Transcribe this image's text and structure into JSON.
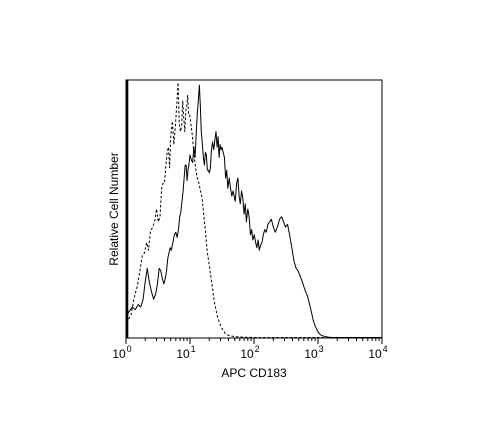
{
  "chart_data": {
    "type": "line",
    "title": "",
    "xlabel": "APC CD183",
    "ylabel": "Relative Cell Number",
    "xscale": "log",
    "xlim": [
      1,
      10000
    ],
    "ylim": [
      0,
      1
    ],
    "grid": false,
    "legend": "none",
    "x_ticks": [
      {
        "value": 1,
        "base": "10",
        "exp": "0"
      },
      {
        "value": 10,
        "base": "10",
        "exp": "1"
      },
      {
        "value": 100,
        "base": "10",
        "exp": "2"
      },
      {
        "value": 1000,
        "base": "10",
        "exp": "3"
      },
      {
        "value": 10000,
        "base": "10",
        "exp": "4"
      }
    ],
    "series": [
      {
        "style": "dashed",
        "color": "#000000",
        "x": [
          1.0,
          1.08,
          1.2,
          1.35,
          1.5,
          1.65,
          1.8,
          1.95,
          2.1,
          2.25,
          2.4,
          2.6,
          2.8,
          3.0,
          3.2,
          3.4,
          3.6,
          3.8,
          4.0,
          4.2,
          4.4,
          4.6,
          4.8,
          5.0,
          5.3,
          5.6,
          5.9,
          6.2,
          6.5,
          6.8,
          7.1,
          7.4,
          7.7,
          8.0,
          8.3,
          8.6,
          8.9,
          9.2,
          9.5,
          9.8,
          10.2,
          10.7,
          11.2,
          11.8,
          12.4,
          13.0,
          13.8,
          14.6,
          15.5,
          16.5,
          17.5,
          18.5,
          20.0,
          22.0,
          24.0,
          27.0,
          31.0,
          35.0,
          40.0,
          50.0,
          70.0,
          100,
          200,
          500,
          1000,
          5000,
          10000
        ],
        "y": [
          0.04,
          0.07,
          0.09,
          0.16,
          0.2,
          0.26,
          0.32,
          0.33,
          0.37,
          0.34,
          0.41,
          0.43,
          0.45,
          0.5,
          0.45,
          0.47,
          0.58,
          0.6,
          0.6,
          0.67,
          0.72,
          0.74,
          0.66,
          0.78,
          0.84,
          0.75,
          0.82,
          0.9,
          0.99,
          0.83,
          0.8,
          0.82,
          0.92,
          0.85,
          0.8,
          0.88,
          0.9,
          0.94,
          0.87,
          0.87,
          0.84,
          0.8,
          0.75,
          0.69,
          0.65,
          0.62,
          0.6,
          0.57,
          0.54,
          0.47,
          0.41,
          0.34,
          0.28,
          0.21,
          0.14,
          0.08,
          0.04,
          0.02,
          0.01,
          0.005,
          0.003,
          0.002,
          0.002,
          0.002,
          0.002,
          0.002,
          0.002
        ]
      },
      {
        "style": "solid",
        "color": "#000000",
        "x": [
          1.0,
          1.1,
          1.25,
          1.4,
          1.55,
          1.7,
          1.85,
          2.0,
          2.15,
          2.3,
          2.5,
          2.7,
          2.9,
          3.1,
          3.3,
          3.5,
          3.7,
          3.9,
          4.1,
          4.3,
          4.5,
          4.7,
          4.9,
          5.1,
          5.4,
          5.7,
          6.0,
          6.3,
          6.6,
          6.9,
          7.2,
          7.5,
          7.8,
          8.1,
          8.4,
          8.7,
          9.0,
          9.3,
          9.6,
          10.0,
          10.5,
          11.0,
          11.5,
          12.0,
          12.5,
          13.0,
          13.5,
          14.0,
          14.5,
          15.0,
          15.6,
          16.2,
          16.8,
          17.4,
          18.0,
          18.7,
          19.4,
          20.1,
          20.8,
          21.5,
          22.5,
          23.5,
          24.5,
          25.5,
          26.5,
          27.5,
          28.5,
          29.5,
          30.5,
          31.5,
          33.0,
          34.5,
          36.0,
          37.5,
          39.0,
          41.0,
          43.0,
          45.0,
          47.0,
          49.0,
          51.0,
          53.5,
          56.0,
          58.5,
          61.0,
          64.0,
          67.0,
          70.0,
          73.0,
          76.0,
          80.0,
          84.0,
          88.0,
          92.0,
          96.0,
          101,
          106,
          111,
          116,
          121,
          127,
          133,
          140,
          147,
          155,
          165,
          175,
          187,
          200,
          215,
          232,
          250,
          270,
          290,
          310,
          335,
          360,
          390,
          420,
          455,
          490,
          525,
          565,
          600,
          640,
          690,
          740,
          790,
          840,
          890,
          950,
          1020,
          1100,
          1200,
          1350,
          1500,
          1700,
          2000,
          3000,
          5000,
          10000
        ],
        "y": [
          0.08,
          0.1,
          0.12,
          0.11,
          0.13,
          0.12,
          0.15,
          0.22,
          0.27,
          0.22,
          0.18,
          0.15,
          0.17,
          0.21,
          0.27,
          0.26,
          0.23,
          0.21,
          0.23,
          0.26,
          0.31,
          0.33,
          0.35,
          0.34,
          0.37,
          0.4,
          0.41,
          0.39,
          0.42,
          0.47,
          0.49,
          0.53,
          0.57,
          0.62,
          0.67,
          0.67,
          0.61,
          0.65,
          0.67,
          0.71,
          0.69,
          0.68,
          0.74,
          0.7,
          0.79,
          0.87,
          0.92,
          0.98,
          0.9,
          0.8,
          0.75,
          0.7,
          0.67,
          0.72,
          0.71,
          0.65,
          0.65,
          0.64,
          0.66,
          0.72,
          0.76,
          0.73,
          0.77,
          0.8,
          0.74,
          0.78,
          0.7,
          0.75,
          0.73,
          0.74,
          0.72,
          0.7,
          0.62,
          0.65,
          0.58,
          0.62,
          0.58,
          0.55,
          0.57,
          0.55,
          0.53,
          0.6,
          0.62,
          0.55,
          0.52,
          0.57,
          0.54,
          0.48,
          0.52,
          0.45,
          0.5,
          0.47,
          0.4,
          0.42,
          0.38,
          0.4,
          0.37,
          0.35,
          0.38,
          0.34,
          0.36,
          0.37,
          0.4,
          0.42,
          0.41,
          0.44,
          0.45,
          0.46,
          0.43,
          0.41,
          0.43,
          0.46,
          0.47,
          0.45,
          0.43,
          0.44,
          0.4,
          0.35,
          0.3,
          0.27,
          0.26,
          0.24,
          0.22,
          0.2,
          0.18,
          0.16,
          0.13,
          0.1,
          0.07,
          0.05,
          0.035,
          0.02,
          0.012,
          0.008,
          0.005,
          0.003,
          0.002,
          0.002,
          0.002,
          0.002,
          0.002
        ]
      }
    ]
  }
}
